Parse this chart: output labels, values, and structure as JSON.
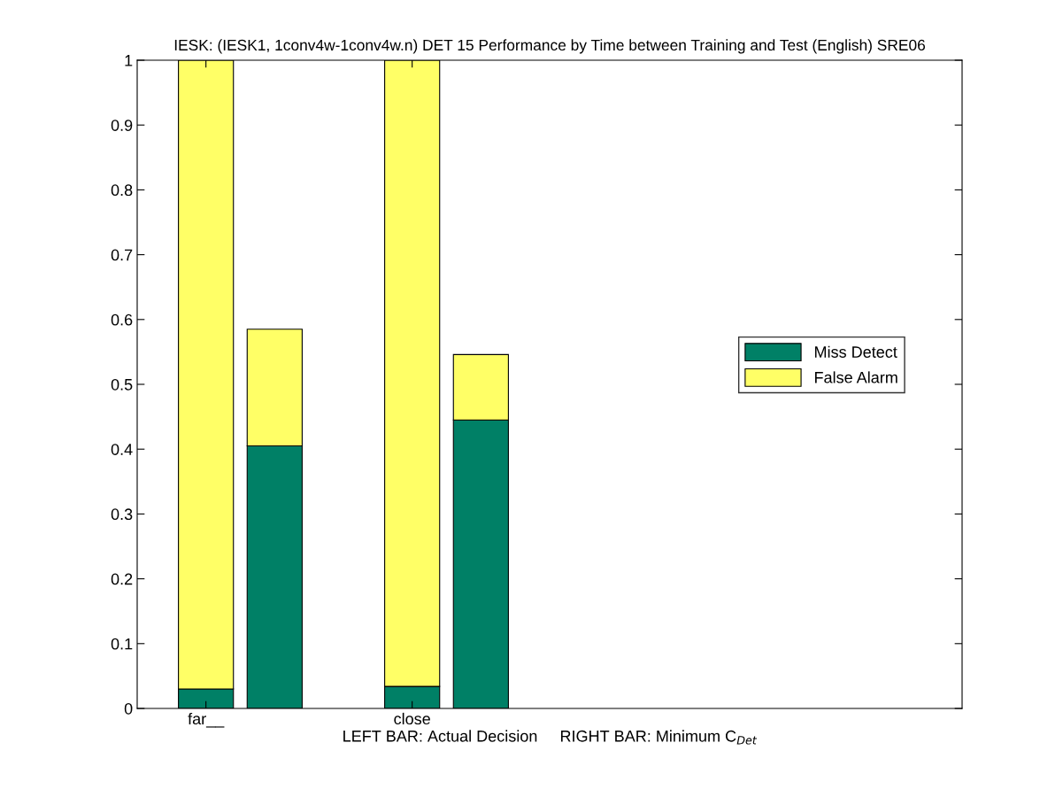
{
  "chart_data": {
    "type": "bar",
    "title": "IESK: (IESK1, 1conv4w-1conv4w.n) DET 15 Performance by Time between Training and Test (English) SRE06",
    "xlabel": "LEFT BAR: Actual Decision     RIGHT BAR: Minimum C$_{Det}$",
    "stacked": true,
    "categories": [
      "far__",
      null,
      null,
      "close",
      null,
      null,
      null,
      null,
      null,
      null,
      null
    ],
    "series": [
      {
        "name": "Miss Detect",
        "color": "#008066",
        "values": [
          0.03,
          0.405,
          null,
          0.034,
          0.445,
          null,
          null,
          null,
          null,
          null,
          null
        ]
      },
      {
        "name": "False Alarm",
        "color": "#ffff66",
        "values": [
          0.97,
          0.18,
          null,
          0.966,
          0.101,
          null,
          null,
          null,
          null,
          null,
          null
        ]
      }
    ],
    "ylim": [
      0,
      1
    ],
    "yticks": [
      0,
      0.1,
      0.2,
      0.3,
      0.4,
      0.5,
      0.6,
      0.7,
      0.8,
      0.9,
      1
    ],
    "grid": false,
    "legend": "right"
  }
}
